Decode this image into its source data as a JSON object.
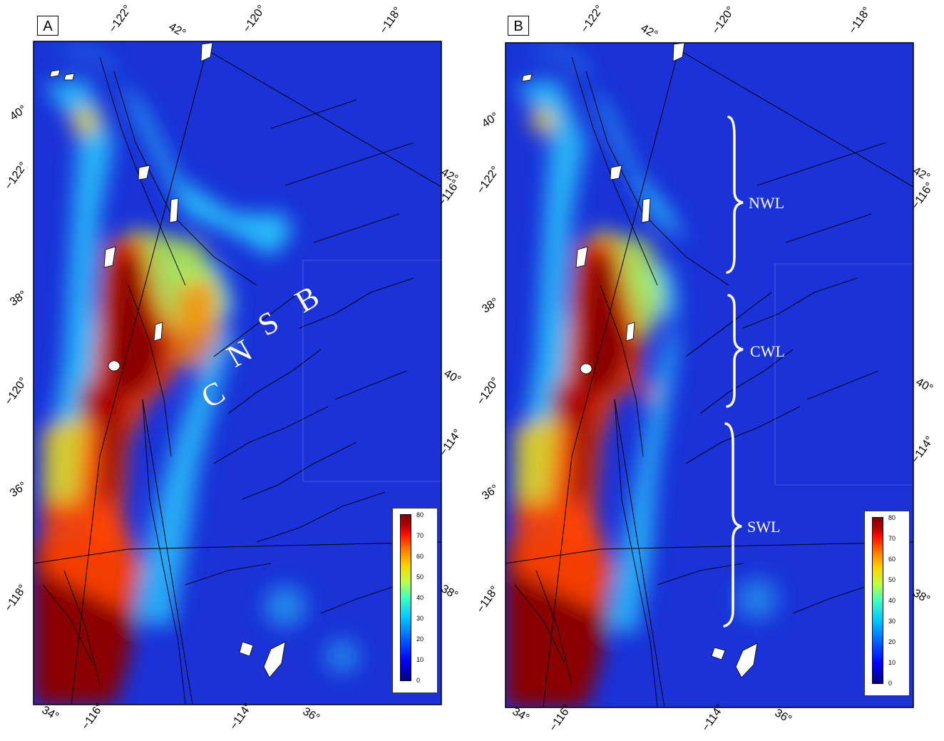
{
  "panels": [
    {
      "letter": "A",
      "ticks": {
        "top": [
          "−122°",
          "42°",
          "−120°",
          "−118°"
        ],
        "left": [
          "40°",
          "−122°",
          "38°",
          "−120°",
          "36°",
          "−118°",
          "34°"
        ],
        "right": [
          "42°",
          "−116°",
          "40°",
          "−114°",
          "38°"
        ],
        "bottom": [
          "−116°",
          "−114°",
          "36°"
        ]
      },
      "overlay_text": [
        "C",
        "N",
        "S",
        "B"
      ],
      "legend": [
        "80",
        "70",
        "60",
        "50",
        "40",
        "30",
        "20",
        "10",
        "0"
      ]
    },
    {
      "letter": "B",
      "ticks": {
        "top": [
          "−122°",
          "42°",
          "−120°",
          "−118°"
        ],
        "left": [
          "40°",
          "−122°",
          "38°",
          "−120°",
          "36°",
          "−118°",
          "34°"
        ],
        "right": [
          "42°",
          "−116°",
          "40°",
          "−114°",
          "38°"
        ],
        "bottom": [
          "−116°",
          "−114°",
          "36°"
        ]
      },
      "overlay_text": [
        "NWL",
        "CWL",
        "SWL"
      ],
      "legend": [
        "80",
        "70",
        "60",
        "50",
        "40",
        "30",
        "20",
        "10",
        "0"
      ]
    }
  ],
  "colors": {
    "deep_blue": "#1730d8",
    "hot_red": "#8b0000",
    "orange": "#ff7a00",
    "cyan": "#27d6ff",
    "yellow": "#e8f030"
  }
}
